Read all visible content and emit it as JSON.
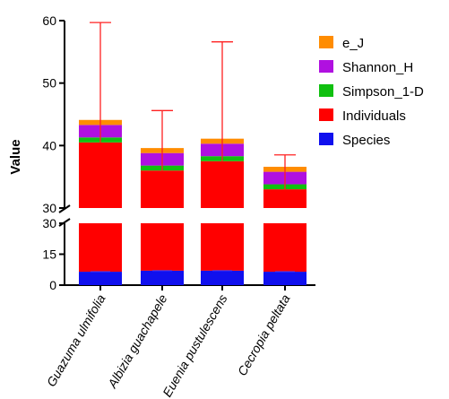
{
  "chart_data": {
    "type": "bar",
    "stacked": true,
    "broken_y_axis": true,
    "title": "",
    "xlabel": "",
    "ylabel": "Value",
    "categories": [
      "Guazuma ulmifolia",
      "Albizia guachapele",
      "Euenia pustulescens",
      "Cecropia peltata"
    ],
    "upper_segment": {
      "ylim": [
        30,
        60
      ],
      "ticks": [
        30,
        40,
        50,
        60
      ]
    },
    "lower_segment": {
      "ylim": [
        0,
        30
      ],
      "ticks": [
        0,
        15,
        30
      ]
    },
    "series": [
      {
        "name": "Species",
        "color": "#1010ee",
        "values": [
          6.5,
          7,
          7,
          6.5
        ]
      },
      {
        "name": "Individuals",
        "color": "#ff0000",
        "values": [
          34,
          29,
          30.5,
          26.5
        ]
      },
      {
        "name": "Simpson_1-D",
        "color": "#10c010",
        "values": [
          0.8,
          0.8,
          0.8,
          0.8
        ]
      },
      {
        "name": "Shannon_H",
        "color": "#b010e0",
        "values": [
          2,
          2,
          2,
          2
        ]
      },
      {
        "name": "e_J",
        "color": "#ff8c00",
        "values": [
          0.8,
          0.8,
          0.8,
          0.8
        ]
      }
    ],
    "error_bars": {
      "color": "#ff2020",
      "applies_to": "Individuals",
      "upper": [
        59.7,
        45.6,
        56.6,
        38.5
      ]
    },
    "legend_position": "right",
    "grid": false
  }
}
